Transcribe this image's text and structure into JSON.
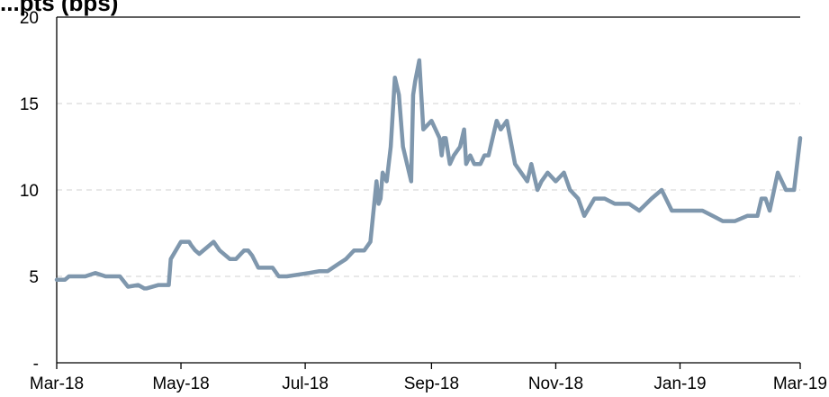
{
  "chart_data": {
    "type": "line",
    "title": "...pts (bps)",
    "xlabel": "",
    "ylabel": "",
    "x_tick_labels": [
      "Mar-18",
      "May-18",
      "Jul-18",
      "Sep-18",
      "Nov-18",
      "Jan-19",
      "Mar-19"
    ],
    "y_tick_labels": [
      "-",
      "5",
      "10",
      "15",
      "20"
    ],
    "ylim": [
      0,
      20
    ],
    "xlim": [
      "2018-03-01",
      "2019-03-01"
    ],
    "grid": "horizontal dashed",
    "colors": {
      "line": "#7f97ad",
      "grid": "#d9d9d9",
      "axis": "#000000"
    },
    "series": [
      {
        "name": "",
        "x": [
          "2018-03-01",
          "2018-03-05",
          "2018-03-07",
          "2018-03-10",
          "2018-03-15",
          "2018-03-20",
          "2018-03-25",
          "2018-03-28",
          "2018-04-01",
          "2018-04-05",
          "2018-04-10",
          "2018-04-13",
          "2018-04-14",
          "2018-04-20",
          "2018-04-21",
          "2018-04-25",
          "2018-04-26",
          "2018-05-01",
          "2018-05-05",
          "2018-05-06",
          "2018-05-08",
          "2018-05-10",
          "2018-05-17",
          "2018-05-20",
          "2018-05-25",
          "2018-05-28",
          "2018-06-01",
          "2018-06-03",
          "2018-06-05",
          "2018-06-08",
          "2018-06-10",
          "2018-06-15",
          "2018-06-18",
          "2018-06-22",
          "2018-07-03",
          "2018-07-08",
          "2018-07-12",
          "2018-07-17",
          "2018-07-21",
          "2018-07-25",
          "2018-07-30",
          "2018-08-02",
          "2018-08-05",
          "2018-08-06",
          "2018-08-07",
          "2018-08-08",
          "2018-08-10",
          "2018-08-12",
          "2018-08-14",
          "2018-08-16",
          "2018-08-18",
          "2018-08-22",
          "2018-08-23",
          "2018-08-24",
          "2018-08-26",
          "2018-08-28",
          "2018-09-01",
          "2018-09-05",
          "2018-09-06",
          "2018-09-07",
          "2018-09-08",
          "2018-09-10",
          "2018-09-12",
          "2018-09-15",
          "2018-09-17",
          "2018-09-18",
          "2018-09-20",
          "2018-09-22",
          "2018-09-25",
          "2018-09-27",
          "2018-09-29",
          "2018-10-03",
          "2018-10-05",
          "2018-10-08",
          "2018-10-12",
          "2018-10-15",
          "2018-10-18",
          "2018-10-20",
          "2018-10-23",
          "2018-10-25",
          "2018-10-28",
          "2018-11-01",
          "2018-11-05",
          "2018-11-08",
          "2018-11-12",
          "2018-11-15",
          "2018-11-20",
          "2018-11-25",
          "2018-11-30",
          "2018-12-03",
          "2018-12-07",
          "2018-12-12",
          "2018-12-18",
          "2018-12-23",
          "2018-12-28",
          "2019-01-03",
          "2019-01-08",
          "2019-01-12",
          "2019-01-17",
          "2019-01-22",
          "2019-01-28",
          "2019-02-03",
          "2019-02-08",
          "2019-02-10",
          "2019-02-12",
          "2019-02-14",
          "2019-02-18",
          "2019-02-22",
          "2019-02-26",
          "2019-02-28",
          "2019-03-01"
        ],
        "values": [
          4.8,
          4.8,
          5.0,
          5.0,
          5.0,
          5.2,
          5.0,
          5.0,
          5.0,
          4.4,
          4.5,
          4.3,
          4.3,
          4.5,
          4.5,
          4.5,
          6.0,
          7.0,
          7.0,
          6.8,
          6.5,
          6.3,
          7.0,
          6.5,
          6.0,
          6.0,
          6.5,
          6.5,
          6.2,
          5.5,
          5.5,
          5.5,
          5.0,
          5.0,
          5.2,
          5.3,
          5.3,
          5.7,
          6.0,
          6.5,
          6.5,
          7.0,
          10.5,
          9.2,
          9.5,
          11.0,
          10.5,
          12.5,
          16.5,
          15.5,
          12.5,
          10.5,
          15.5,
          16.3,
          17.5,
          13.5,
          14.0,
          13.0,
          12.0,
          13.0,
          13.0,
          11.5,
          12.0,
          12.5,
          13.5,
          11.5,
          12.0,
          11.5,
          11.5,
          12.0,
          12.0,
          14.0,
          13.5,
          14.0,
          11.5,
          11.0,
          10.5,
          11.5,
          10.0,
          10.5,
          11.0,
          10.5,
          11.0,
          10.0,
          9.5,
          8.5,
          9.5,
          9.5,
          9.2,
          9.2,
          9.2,
          8.8,
          9.5,
          10.0,
          8.8,
          8.8,
          8.8,
          8.8,
          8.5,
          8.2,
          8.2,
          8.5,
          8.5,
          9.5,
          9.5,
          8.8,
          11.0,
          10.0,
          10.0,
          12.0,
          13.0
        ]
      }
    ]
  }
}
